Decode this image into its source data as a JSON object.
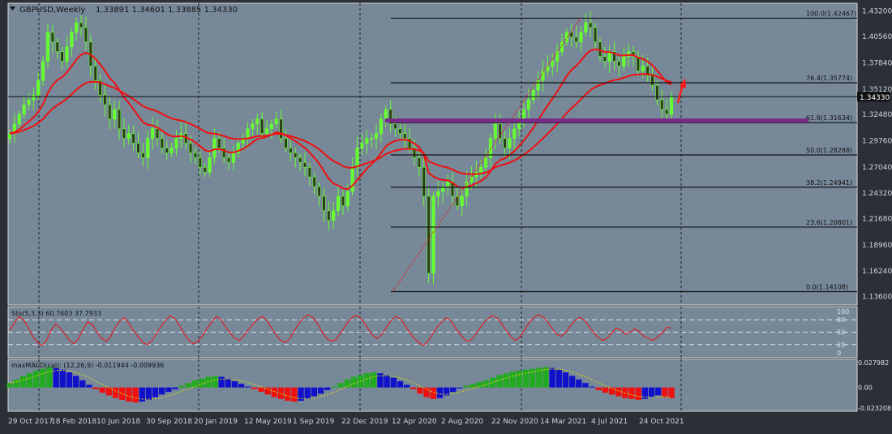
{
  "header": {
    "symbol": "GBPUSD,Weekly",
    "ohlc": "1.33891 1.34601 1.33885 1.34330"
  },
  "colors": {
    "background": "#778899",
    "panel_border": "#d8d8d8",
    "grid": "#1a1a1a",
    "bull_candle": "#66ff33",
    "bear_candle": "#2d3a1a",
    "ma": "#ee1111",
    "fib_line": "#111111",
    "zone": "#7a2a8a",
    "hline": "#111111",
    "price_tag_bg": "#111111",
    "stoch": "#ee1111",
    "macd_up": "#22aa22",
    "macd_down": "#ee1111",
    "macd_mid": "#1111cc"
  },
  "chart_data": [
    {
      "type": "candlestick",
      "title": "GBPUSD,Weekly",
      "ylim": [
        1.1272,
        1.4402
      ],
      "y_ticks": [
        "1.43200",
        "1.40560",
        "1.37840",
        "1.35120",
        "1.32480",
        "1.29760",
        "1.27040",
        "1.24320",
        "1.21680",
        "1.18960",
        "1.16240",
        "1.13600"
      ],
      "x_ticks": [
        "29 Oct 2017",
        "18 Feb 2018",
        "10 Jun 2018",
        "30 Sep 2018",
        "20 Jan 2019",
        "12 May 2019",
        "1 Sep 2019",
        "22 Dec 2019",
        "12 Apr 2020",
        "2 Aug 2020",
        "22 Nov 2020",
        "14 Mar 2021",
        "4 Jul 2021",
        "24 Oct 2021"
      ],
      "current_price": "1.34330",
      "closes": [
        1.305,
        1.315,
        1.325,
        1.335,
        1.34,
        1.345,
        1.36,
        1.38,
        1.41,
        1.4,
        1.39,
        1.38,
        1.395,
        1.41,
        1.42,
        1.415,
        1.4,
        1.375,
        1.36,
        1.345,
        1.335,
        1.32,
        1.33,
        1.31,
        1.3,
        1.305,
        1.295,
        1.285,
        1.28,
        1.3,
        1.31,
        1.3,
        1.29,
        1.285,
        1.29,
        1.3,
        1.305,
        1.295,
        1.285,
        1.28,
        1.27,
        1.265,
        1.28,
        1.3,
        1.29,
        1.28,
        1.275,
        1.285,
        1.295,
        1.3,
        1.31,
        1.315,
        1.32,
        1.305,
        1.31,
        1.315,
        1.32,
        1.3,
        1.29,
        1.285,
        1.28,
        1.275,
        1.27,
        1.26,
        1.25,
        1.24,
        1.225,
        1.215,
        1.225,
        1.24,
        1.23,
        1.245,
        1.27,
        1.29,
        1.295,
        1.3,
        1.3,
        1.305,
        1.32,
        1.33,
        1.315,
        1.31,
        1.305,
        1.3,
        1.29,
        1.28,
        1.27,
        1.24,
        1.16,
        1.24,
        1.245,
        1.25,
        1.255,
        1.24,
        1.23,
        1.24,
        1.255,
        1.26,
        1.265,
        1.27,
        1.28,
        1.3,
        1.315,
        1.3,
        1.29,
        1.3,
        1.31,
        1.32,
        1.33,
        1.34,
        1.35,
        1.36,
        1.37,
        1.375,
        1.38,
        1.39,
        1.4,
        1.41,
        1.405,
        1.4,
        1.41,
        1.42,
        1.415,
        1.4,
        1.385,
        1.38,
        1.39,
        1.38,
        1.375,
        1.385,
        1.39,
        1.385,
        1.37,
        1.375,
        1.365,
        1.355,
        1.34,
        1.33,
        1.325,
        1.343
      ],
      "fib_levels": [
        {
          "label": "100.0(1.42467)",
          "price": 1.42467
        },
        {
          "label": "76.4(1.35774)",
          "price": 1.35774
        },
        {
          "label": "61.8(1.31634)",
          "price": 1.31634
        },
        {
          "label": "50.0(1.28288)",
          "price": 1.28288
        },
        {
          "label": "38.2(1.24941)",
          "price": 1.24941
        },
        {
          "label": "23.6(1.20801)",
          "price": 1.20801
        },
        {
          "label": "0.0(1.14108)",
          "price": 1.14108
        }
      ],
      "zone_price": 1.319
    },
    {
      "type": "line",
      "title": "Sto(5,3,3) 60.7603 37.7933",
      "ylim": [
        0,
        100
      ],
      "y_ticks": [
        "100",
        "80",
        "50",
        "20",
        "0"
      ],
      "levels": [
        80,
        50,
        20
      ],
      "values": [
        55,
        72,
        88,
        80,
        62,
        40,
        25,
        18,
        30,
        55,
        70,
        60,
        45,
        30,
        22,
        35,
        58,
        75,
        68,
        50,
        35,
        28,
        40,
        62,
        78,
        85,
        70,
        52,
        38,
        25,
        20,
        30,
        48,
        65,
        80,
        90,
        82,
        65,
        45,
        30,
        22,
        28,
        42,
        60,
        75,
        88,
        80,
        62,
        48,
        35,
        30,
        42,
        58,
        70,
        82,
        88,
        78,
        60,
        42,
        30,
        25,
        35,
        55,
        72,
        85,
        92,
        85,
        70,
        50,
        35,
        28,
        32,
        48,
        65,
        80,
        90,
        88,
        75,
        58,
        42,
        35,
        45,
        62,
        78,
        88,
        82,
        68,
        50,
        35,
        25,
        18,
        28,
        45,
        62,
        75,
        85,
        78,
        60,
        45,
        32,
        28,
        38,
        55,
        70,
        82,
        90,
        85,
        72,
        55,
        40,
        30,
        38,
        55,
        72,
        85,
        92,
        88,
        75,
        60,
        45,
        40,
        50,
        65,
        78,
        86,
        80,
        65,
        50,
        38,
        30,
        35,
        48,
        60,
        55,
        45,
        50,
        58,
        52,
        40,
        35,
        30,
        38,
        48,
        62,
        60
      ]
    },
    {
      "type": "bar",
      "title": "maxMACD(cal): (12,26,9) -0.011944 -0.009936",
      "ylim": [
        -0.023208,
        0.027982
      ],
      "y_ticks": [
        "0.027982",
        "0.00",
        "-0.023208"
      ],
      "values": [
        0.005,
        0.009,
        0.013,
        0.016,
        0.019,
        0.021,
        0.023,
        0.022,
        0.02,
        0.017,
        0.013,
        0.008,
        0.003,
        -0.002,
        -0.006,
        -0.009,
        -0.012,
        -0.014,
        -0.016,
        -0.017,
        -0.016,
        -0.014,
        -0.011,
        -0.008,
        -0.005,
        -0.002,
        0.002,
        0.005,
        0.008,
        0.01,
        0.012,
        0.013,
        0.012,
        0.01,
        0.007,
        0.004,
        0.001,
        -0.002,
        -0.005,
        -0.008,
        -0.011,
        -0.013,
        -0.015,
        -0.016,
        -0.015,
        -0.013,
        -0.01,
        -0.007,
        -0.003,
        0.001,
        0.005,
        0.009,
        0.012,
        0.014,
        0.016,
        0.017,
        0.016,
        0.014,
        0.011,
        0.007,
        0.003,
        -0.002,
        -0.007,
        -0.011,
        -0.013,
        -0.012,
        -0.009,
        -0.005,
        -0.001,
        0.002,
        0.004,
        0.006,
        0.008,
        0.011,
        0.014,
        0.016,
        0.018,
        0.019,
        0.02,
        0.021,
        0.022,
        0.023,
        0.022,
        0.02,
        0.017,
        0.013,
        0.009,
        0.005,
        0.001,
        -0.003,
        -0.006,
        -0.008,
        -0.01,
        -0.012,
        -0.013,
        -0.014,
        -0.013,
        -0.011,
        -0.009,
        -0.011,
        -0.012
      ]
    }
  ]
}
